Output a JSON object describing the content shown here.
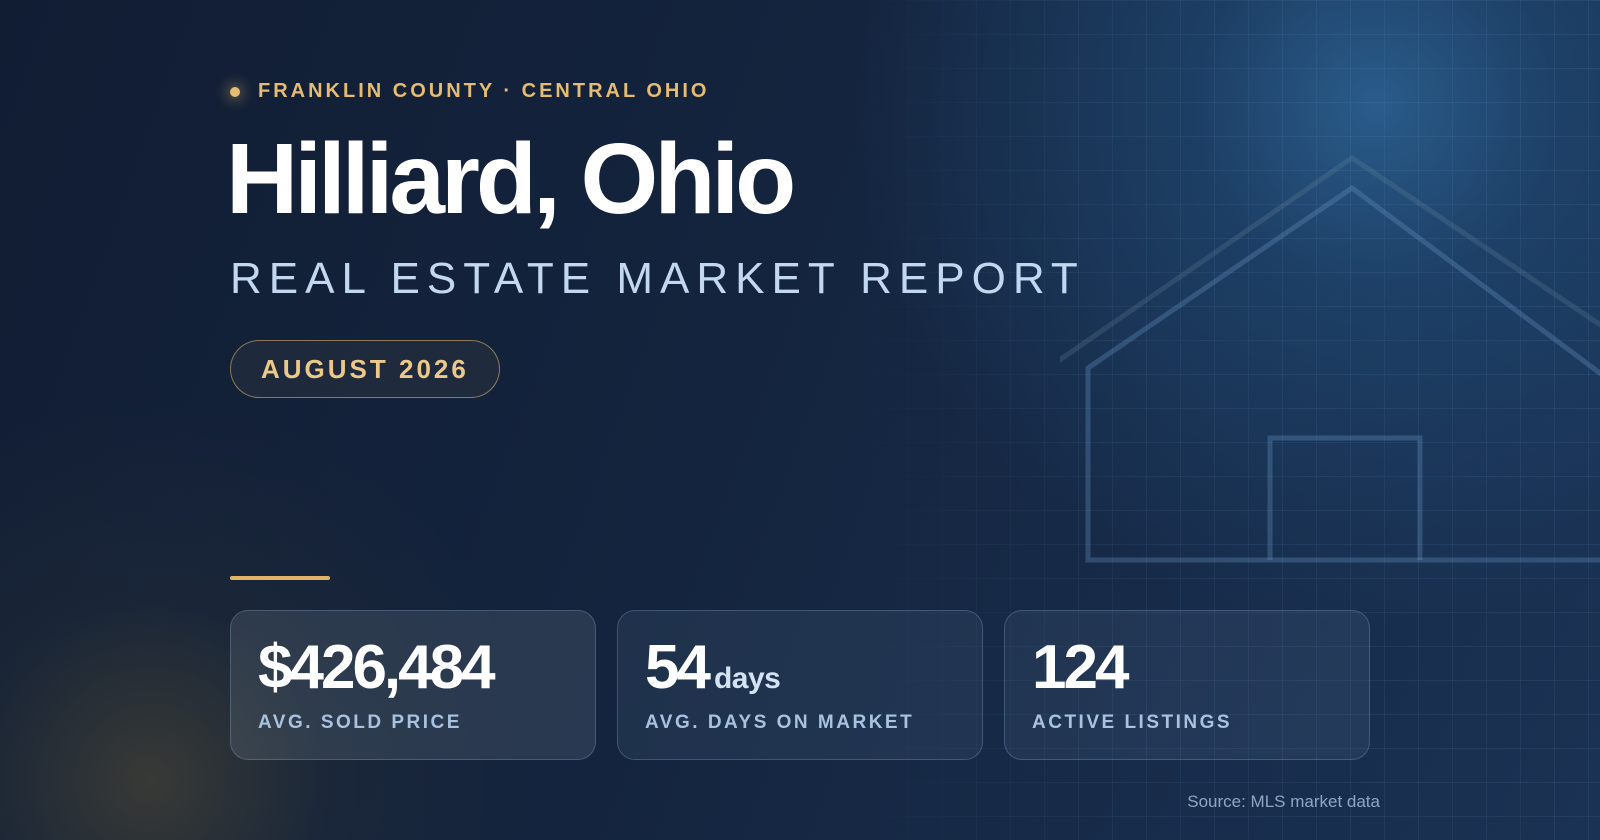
{
  "header": {
    "eyebrow": "FRANKLIN COUNTY · CENTRAL OHIO",
    "title": "Hilliard, Ohio",
    "subtitle": "REAL ESTATE MARKET REPORT",
    "date_badge": "AUGUST 2026"
  },
  "stats": [
    {
      "value": "$426,484",
      "unit": "",
      "label": "AVG. SOLD PRICE"
    },
    {
      "value": "54",
      "unit": "days",
      "label": "AVG. DAYS ON MARKET"
    },
    {
      "value": "124",
      "unit": "",
      "label": "ACTIVE LISTINGS"
    }
  ],
  "footer": {
    "source": "Source: MLS market data"
  },
  "colors": {
    "accent_gold": "#e6bc72",
    "background_navy": "#14243e",
    "subtitle_blue": "#c2d8f0"
  },
  "icons": {
    "decorative": "house-outline-icon",
    "eyebrow_marker": "dot-icon"
  }
}
